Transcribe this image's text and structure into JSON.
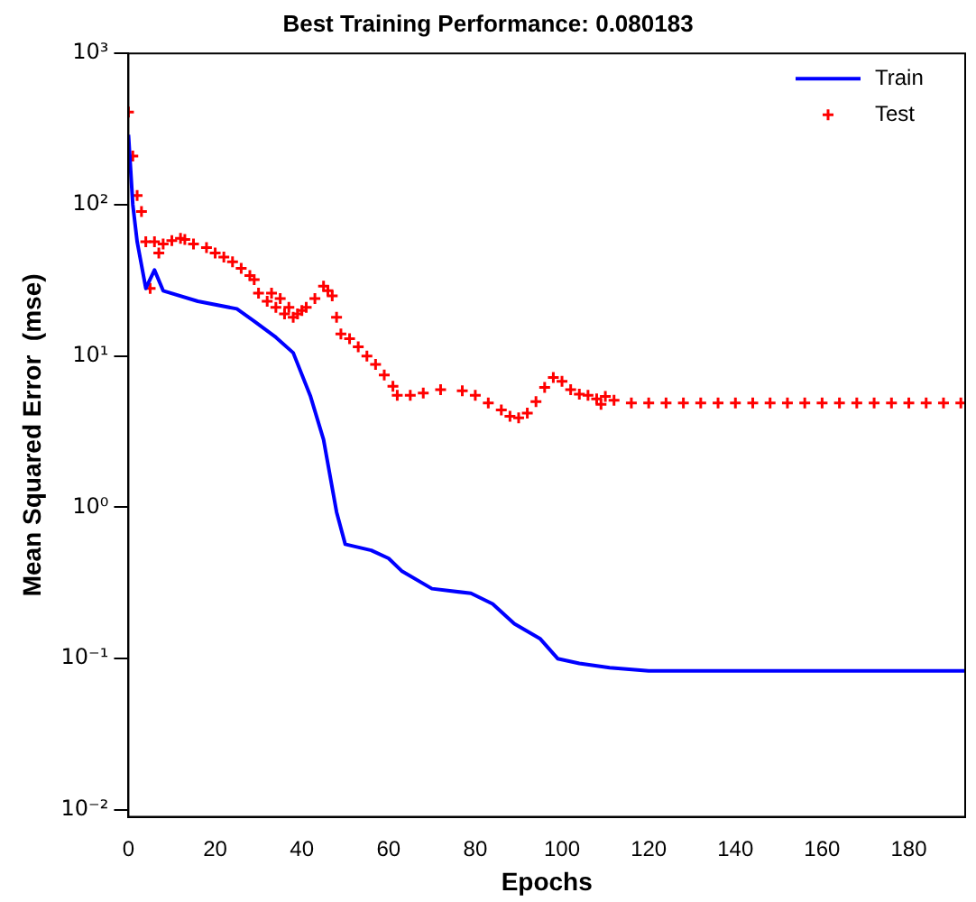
{
  "chart_data": {
    "type": "line",
    "title": "Best Training Performance: 0.080183",
    "xlabel": "Epochs",
    "ylabel": "Mean Squared Error  (mse)",
    "log": "y",
    "grid": false,
    "legend": "top right",
    "xlim": [
      0,
      193
    ],
    "xticks": [
      0,
      20,
      40,
      60,
      80,
      100,
      120,
      140,
      160,
      180
    ],
    "ylim": [
      0.009,
      1000
    ],
    "yticks": [
      {
        "value": 0.01,
        "label": "10⁻²"
      },
      {
        "value": 0.1,
        "label": "10⁻¹"
      },
      {
        "value": 1,
        "label": "10⁰"
      },
      {
        "value": 10,
        "label": "10¹"
      },
      {
        "value": 100,
        "label": "10²"
      },
      {
        "value": 1000,
        "label": "10³"
      }
    ],
    "series": [
      {
        "name": "Train",
        "type": "line",
        "marker": "none",
        "line_style": "solid",
        "color": "#0000ff",
        "x": [
          0,
          1,
          2,
          4,
          6,
          8,
          16,
          25,
          29,
          34,
          38,
          42,
          45,
          48,
          50,
          56,
          60,
          63,
          70,
          79,
          84,
          89,
          95,
          99,
          104,
          111,
          120,
          193
        ],
        "values": [
          290,
          100,
          57,
          28,
          37,
          27,
          23,
          20.5,
          17,
          13.3,
          10.5,
          5.4,
          2.8,
          0.93,
          0.57,
          0.52,
          0.46,
          0.38,
          0.29,
          0.27,
          0.23,
          0.17,
          0.135,
          0.1,
          0.093,
          0.087,
          0.083,
          0.083
        ]
      },
      {
        "name": "Test",
        "type": "scatter",
        "marker": "cross",
        "color": "#ff0000",
        "x": [
          0,
          1,
          2,
          3,
          4,
          5,
          6,
          7,
          8,
          10,
          12,
          13,
          15,
          18,
          20,
          22,
          24,
          26,
          28,
          29,
          30,
          32,
          33,
          34,
          35,
          36,
          37,
          38,
          39,
          40,
          41,
          43,
          45,
          46,
          47,
          48,
          49,
          51,
          53,
          55,
          57,
          59,
          61,
          62,
          65,
          68,
          72,
          77,
          80,
          83,
          86,
          88,
          90,
          92,
          94,
          96,
          98,
          100,
          102,
          104,
          106,
          108,
          109,
          110,
          112,
          116,
          120,
          124,
          128,
          132,
          136,
          140,
          144,
          148,
          152,
          156,
          160,
          164,
          168,
          172,
          176,
          180,
          184,
          188,
          192
        ],
        "values": [
          410,
          210,
          115,
          90,
          57,
          28,
          57,
          48,
          55,
          58,
          60,
          59,
          55,
          52,
          48,
          45,
          42,
          38,
          34,
          32,
          26,
          23,
          26,
          21,
          24,
          19,
          21,
          18,
          19,
          20,
          21,
          24,
          29,
          27,
          25,
          18,
          14,
          13,
          11.5,
          10,
          8.8,
          7.5,
          6.3,
          5.5,
          5.5,
          5.7,
          6,
          5.9,
          5.5,
          4.9,
          4.4,
          4,
          3.9,
          4.2,
          5,
          6.2,
          7.2,
          6.8,
          6,
          5.6,
          5.5,
          5.2,
          4.8,
          5.4,
          5.1,
          4.9,
          4.9,
          4.9,
          4.9,
          4.9,
          4.9,
          4.9,
          4.9,
          4.9,
          4.9,
          4.9,
          4.9,
          4.9,
          4.9,
          4.9,
          4.9,
          4.9,
          4.9,
          4.9,
          4.9
        ]
      }
    ]
  }
}
